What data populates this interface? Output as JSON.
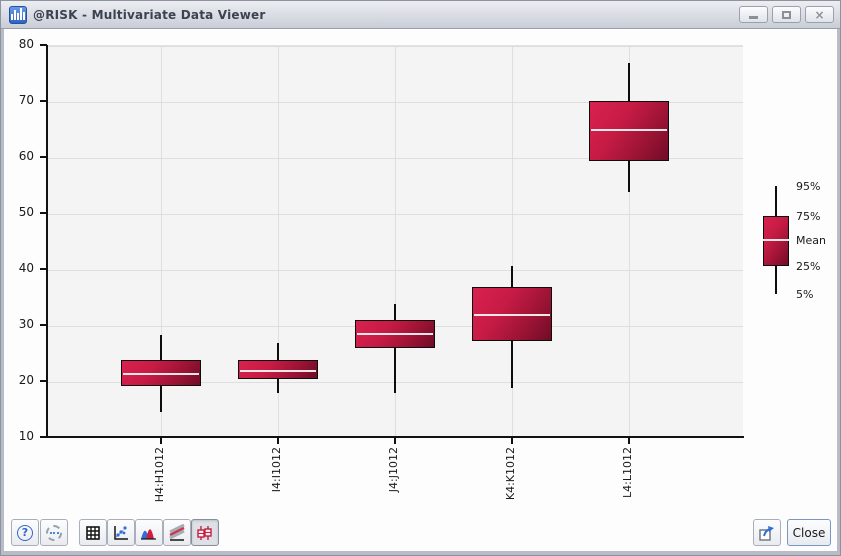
{
  "window": {
    "title": "@RISK - Multivariate Data Viewer",
    "controls": [
      "minimize",
      "maximize",
      "close"
    ],
    "close_glyph": "×"
  },
  "chart_data": {
    "type": "boxplot",
    "title": "",
    "categories": [
      "H4:H1012",
      "I4:I1012",
      "J4:J1012",
      "K4:K1012",
      "L4:L1012"
    ],
    "series": [
      {
        "name": "H4:H1012",
        "p5": 14.7,
        "p25": 19.3,
        "mean": 21.5,
        "p75": 24.0,
        "p95": 28.4
      },
      {
        "name": "I4:I1012",
        "p5": 18.0,
        "p25": 20.5,
        "mean": 22.0,
        "p75": 24.0,
        "p95": 27.0
      },
      {
        "name": "J4:J1012",
        "p5": 18.0,
        "p25": 26.0,
        "mean": 28.5,
        "p75": 31.0,
        "p95": 34.0
      },
      {
        "name": "K4:K1012",
        "p5": 19.0,
        "p25": 27.3,
        "mean": 32.0,
        "p75": 37.0,
        "p95": 40.8
      },
      {
        "name": "L4:L1012",
        "p5": 54.0,
        "p25": 59.5,
        "mean": 65.0,
        "p75": 70.2,
        "p95": 77.0
      }
    ],
    "ylim": [
      10,
      80
    ],
    "yticks": [
      80,
      70,
      60,
      50,
      40,
      30,
      20,
      10
    ],
    "grid": true,
    "legend_position": "right",
    "legend_labels": [
      "95%",
      "75%",
      "Mean",
      "25%",
      "5%"
    ],
    "colors": {
      "box_gradient_start": "#d92150",
      "box_gradient_end": "#6f0c27",
      "mean_line": "#f0f0f0",
      "plot_background": "#f4f4f4",
      "gridline": "#dedede"
    }
  },
  "toolbar": {
    "buttons": [
      "help",
      "settings",
      "table-view",
      "scatter-view",
      "distribution-view",
      "overlay-view",
      "box-plot-view"
    ],
    "selected_button": "box-plot-view",
    "close_label": "Close"
  }
}
